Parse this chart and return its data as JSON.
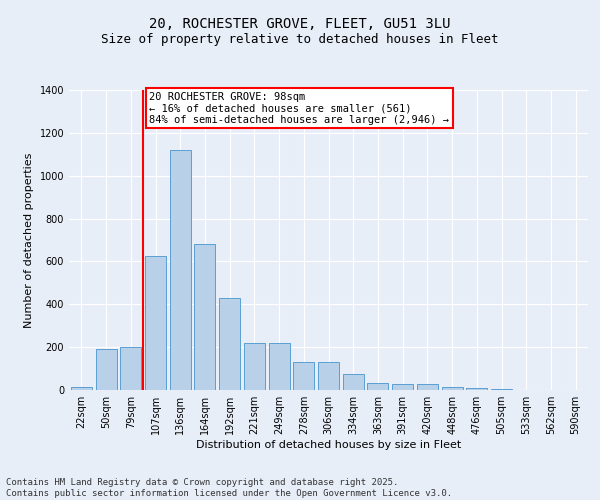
{
  "title_line1": "20, ROCHESTER GROVE, FLEET, GU51 3LU",
  "title_line2": "Size of property relative to detached houses in Fleet",
  "xlabel": "Distribution of detached houses by size in Fleet",
  "ylabel": "Number of detached properties",
  "categories": [
    "22sqm",
    "50sqm",
    "79sqm",
    "107sqm",
    "136sqm",
    "164sqm",
    "192sqm",
    "221sqm",
    "249sqm",
    "278sqm",
    "306sqm",
    "334sqm",
    "363sqm",
    "391sqm",
    "420sqm",
    "448sqm",
    "476sqm",
    "505sqm",
    "533sqm",
    "562sqm",
    "590sqm"
  ],
  "values": [
    15,
    193,
    200,
    625,
    1120,
    680,
    430,
    220,
    220,
    130,
    130,
    75,
    33,
    27,
    27,
    15,
    10,
    7,
    0,
    0,
    0
  ],
  "bar_color": "#b8d0e8",
  "bar_edge_color": "#5a9fd4",
  "background_color": "#e8eef8",
  "vline_color": "red",
  "vline_index": 3,
  "annotation_text": "20 ROCHESTER GROVE: 98sqm\n← 16% of detached houses are smaller (561)\n84% of semi-detached houses are larger (2,946) →",
  "annotation_box_facecolor": "white",
  "annotation_box_edgecolor": "red",
  "ylim": [
    0,
    1400
  ],
  "yticks": [
    0,
    200,
    400,
    600,
    800,
    1000,
    1200,
    1400
  ],
  "footer_line1": "Contains HM Land Registry data © Crown copyright and database right 2025.",
  "footer_line2": "Contains public sector information licensed under the Open Government Licence v3.0.",
  "title_fontsize": 10,
  "subtitle_fontsize": 9,
  "axis_label_fontsize": 8,
  "tick_fontsize": 7,
  "annotation_fontsize": 7.5,
  "footer_fontsize": 6.5
}
